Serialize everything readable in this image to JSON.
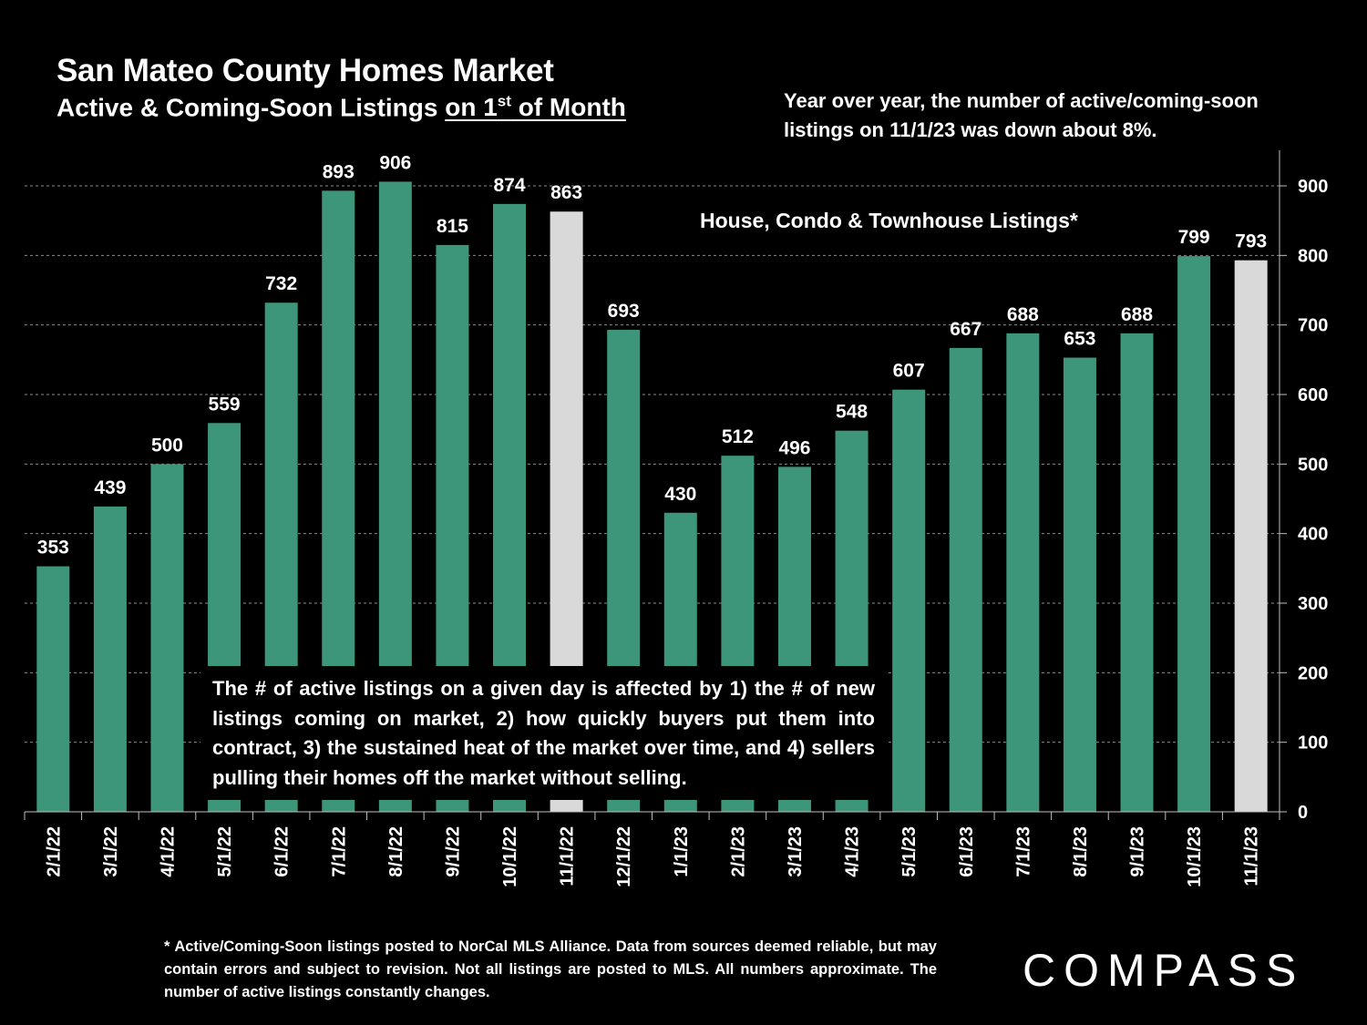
{
  "header": {
    "title": "San Mateo County Homes Market",
    "subtitle_prefix": "Active & Coming-Soon Listings ",
    "subtitle_underlined": "on 1",
    "subtitle_sup": "st",
    "subtitle_suffix": " of Month"
  },
  "annotations": {
    "yoy_note": "Year over year, the number of active/coming-soon listings on 11/1/23 was down about 8%.",
    "series_label": "House, Condo & Townhouse Listings*",
    "explanation": "The # of active listings on a given day is affected by 1) the # of new listings coming on market, 2) how quickly buyers put them into contract, 3) the sustained heat of the market over time, and 4) sellers pulling their homes off the market without selling."
  },
  "footnote": "* Active/Coming-Soon listings posted to NorCal MLS Alliance.  Data from sources deemed reliable, but may contain errors and subject to revision.  Not all listings are posted to MLS. All numbers approximate. The number of active listings constantly changes.",
  "brand": {
    "logo_text": "COMPASS"
  },
  "colors": {
    "bar": "#3d957a",
    "highlight_bar": "#d9d9d9",
    "background": "#000000",
    "gridline": "#8c8c8c",
    "text": "#ffffff"
  },
  "chart_data": {
    "type": "bar",
    "categories": [
      "2/1/22",
      "3/1/22",
      "4/1/22",
      "5/1/22",
      "6/1/22",
      "7/1/22",
      "8/1/22",
      "9/1/22",
      "10/1/22",
      "11/1/22",
      "12/1/22",
      "1/1/23",
      "2/1/23",
      "3/1/23",
      "4/1/23",
      "5/1/23",
      "6/1/23",
      "7/1/23",
      "8/1/23",
      "9/1/23",
      "10/1/23",
      "11/1/23"
    ],
    "values": [
      353,
      439,
      500,
      559,
      732,
      893,
      906,
      815,
      874,
      863,
      693,
      430,
      512,
      496,
      548,
      607,
      667,
      688,
      653,
      688,
      799,
      793
    ],
    "highlighted_categories": [
      "11/1/22",
      "11/1/23"
    ],
    "ylim": [
      0,
      900
    ],
    "yticks": [
      0,
      100,
      200,
      300,
      400,
      500,
      600,
      700,
      800,
      900
    ],
    "y_axis_position": "right",
    "grid": true,
    "data_labels": true,
    "legend": "none"
  }
}
